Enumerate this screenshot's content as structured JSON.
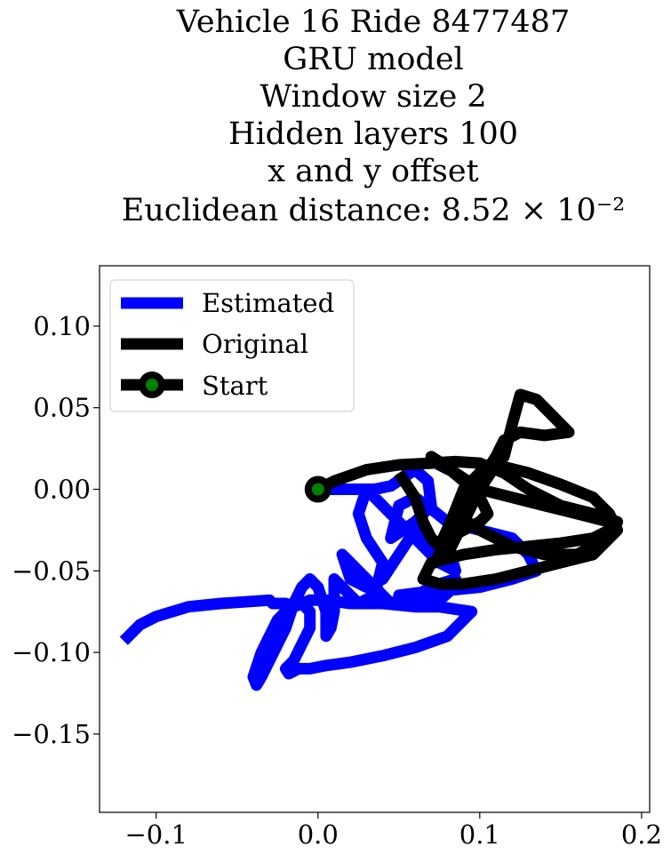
{
  "chart_data": {
    "type": "line",
    "title_lines": [
      "Vehicle 16 Ride 8477487",
      "GRU model",
      "Window size 2",
      "Hidden layers 100",
      "x and y offset",
      "Euclidean distance: 8.52 × 10⁻²"
    ],
    "xlabel": "",
    "ylabel": "",
    "xlim": [
      -0.135,
      0.205
    ],
    "ylim": [
      -0.198,
      0.137
    ],
    "xticks": [
      {
        "value": -0.1,
        "label": "−0.1"
      },
      {
        "value": 0.0,
        "label": "0.0"
      },
      {
        "value": 0.1,
        "label": "0.1"
      },
      {
        "value": 0.2,
        "label": "0.2"
      }
    ],
    "yticks": [
      {
        "value": 0.1,
        "label": "0.10"
      },
      {
        "value": 0.05,
        "label": "0.05"
      },
      {
        "value": 0.0,
        "label": "0.00"
      },
      {
        "value": -0.05,
        "label": "−0.05"
      },
      {
        "value": -0.1,
        "label": "−0.10"
      },
      {
        "value": -0.15,
        "label": "−0.15"
      }
    ],
    "grid": false,
    "legend_position": "top-left",
    "series": [
      {
        "name": "Estimated",
        "color": "#0000ff",
        "x": [
          0.0,
          0.02,
          0.035,
          0.045,
          0.06,
          0.068,
          0.07,
          0.06,
          0.045,
          0.05,
          0.06,
          0.07,
          0.08,
          0.1,
          0.12,
          0.13,
          0.135,
          0.12,
          0.1,
          0.08,
          0.065,
          0.05,
          0.055,
          0.065,
          0.075,
          0.082,
          0.085,
          0.075,
          0.06,
          0.05,
          0.045,
          0.04,
          0.03,
          0.02,
          0.015,
          0.02,
          0.03,
          0.04,
          0.05,
          0.06,
          0.07,
          0.082,
          0.085,
          0.075,
          0.06,
          0.04,
          0.03,
          0.025,
          0.03,
          0.04,
          0.035,
          0.025,
          0.015,
          0.01,
          0.01,
          0.01,
          0.008,
          0.005,
          0.005,
          0.0,
          -0.005,
          -0.01,
          -0.015,
          -0.02,
          -0.025,
          -0.03,
          -0.035,
          -0.038,
          -0.04,
          -0.035,
          -0.03,
          -0.025,
          -0.02,
          -0.015,
          -0.01,
          -0.005,
          -0.005,
          -0.01,
          -0.015,
          -0.02,
          -0.018,
          -0.012,
          -0.005,
          0.005,
          0.02,
          0.04,
          0.06,
          0.08,
          0.095,
          0.075,
          0.06,
          0.04,
          0.02,
          0.005,
          -0.005,
          -0.015,
          -0.02,
          -0.025,
          -0.028,
          -0.03,
          -0.06,
          -0.08,
          -0.1,
          -0.11,
          -0.12
        ],
        "y": [
          0.0,
          0.0,
          0.0,
          0.002,
          0.012,
          0.005,
          -0.01,
          -0.02,
          -0.03,
          -0.01,
          -0.005,
          -0.012,
          -0.02,
          -0.025,
          -0.03,
          -0.04,
          -0.05,
          -0.055,
          -0.06,
          -0.062,
          -0.063,
          -0.065,
          -0.07,
          -0.07,
          -0.068,
          -0.062,
          -0.055,
          -0.058,
          -0.065,
          -0.068,
          -0.07,
          -0.065,
          -0.055,
          -0.045,
          -0.04,
          -0.055,
          -0.06,
          -0.055,
          -0.04,
          -0.025,
          -0.03,
          -0.04,
          -0.05,
          -0.045,
          -0.03,
          -0.01,
          0.0,
          -0.015,
          -0.03,
          -0.045,
          -0.065,
          -0.07,
          -0.06,
          -0.055,
          -0.06,
          -0.075,
          -0.085,
          -0.09,
          -0.075,
          -0.06,
          -0.055,
          -0.06,
          -0.07,
          -0.085,
          -0.095,
          -0.105,
          -0.115,
          -0.12,
          -0.115,
          -0.1,
          -0.09,
          -0.08,
          -0.075,
          -0.07,
          -0.07,
          -0.075,
          -0.085,
          -0.095,
          -0.105,
          -0.11,
          -0.113,
          -0.11,
          -0.11,
          -0.108,
          -0.106,
          -0.102,
          -0.097,
          -0.09,
          -0.075,
          -0.072,
          -0.072,
          -0.07,
          -0.07,
          -0.068,
          -0.068,
          -0.072,
          -0.07,
          -0.07,
          -0.07,
          -0.068,
          -0.07,
          -0.072,
          -0.078,
          -0.083,
          -0.093
        ]
      },
      {
        "name": "Original",
        "color": "#000000",
        "x": [
          0.0,
          0.01,
          0.03,
          0.05,
          0.07,
          0.085,
          0.1,
          0.115,
          0.13,
          0.15,
          0.17,
          0.185,
          0.18,
          0.16,
          0.14,
          0.12,
          0.1,
          0.085,
          0.075,
          0.082,
          0.09,
          0.1,
          0.11,
          0.115,
          0.12,
          0.125,
          0.135,
          0.15,
          0.155,
          0.14,
          0.125,
          0.115,
          0.11,
          0.1,
          0.09,
          0.08,
          0.075,
          0.072,
          0.08,
          0.09,
          0.1,
          0.11,
          0.13,
          0.15,
          0.17,
          0.18,
          0.185,
          0.17,
          0.15,
          0.13,
          0.11,
          0.09,
          0.075,
          0.065,
          0.07,
          0.09,
          0.11,
          0.13,
          0.15,
          0.17,
          0.18,
          0.185,
          0.18,
          0.16,
          0.14,
          0.12,
          0.1,
          0.085,
          0.075,
          0.07,
          0.078,
          0.09,
          0.1,
          0.105,
          0.1,
          0.09,
          0.08,
          0.075,
          0.07,
          0.065,
          0.06,
          0.05
        ],
        "y": [
          0.0,
          0.005,
          0.012,
          0.015,
          0.016,
          0.017,
          0.016,
          0.01,
          0.0,
          -0.01,
          -0.015,
          -0.02,
          -0.03,
          -0.04,
          -0.04,
          -0.035,
          -0.025,
          -0.015,
          -0.035,
          -0.02,
          0.0,
          0.01,
          0.015,
          0.02,
          0.04,
          0.058,
          0.055,
          0.04,
          0.035,
          0.033,
          0.035,
          0.03,
          0.02,
          0.005,
          -0.01,
          -0.025,
          -0.04,
          -0.045,
          -0.04,
          -0.02,
          0.0,
          0.015,
          0.01,
          0.003,
          -0.005,
          -0.015,
          -0.025,
          -0.04,
          -0.045,
          -0.05,
          -0.055,
          -0.058,
          -0.058,
          -0.055,
          -0.045,
          -0.04,
          -0.037,
          -0.035,
          -0.033,
          -0.03,
          -0.025,
          -0.02,
          -0.02,
          -0.015,
          -0.01,
          -0.005,
          0.0,
          0.01,
          0.015,
          0.02,
          0.015,
          0.005,
          -0.005,
          -0.015,
          -0.02,
          -0.025,
          -0.03,
          -0.035,
          -0.03,
          -0.02,
          -0.005,
          0.01
        ]
      }
    ],
    "start_point": {
      "name": "Start",
      "x": 0.0,
      "y": 0.0,
      "marker_color": "#008000",
      "edge_color": "#000000"
    }
  }
}
